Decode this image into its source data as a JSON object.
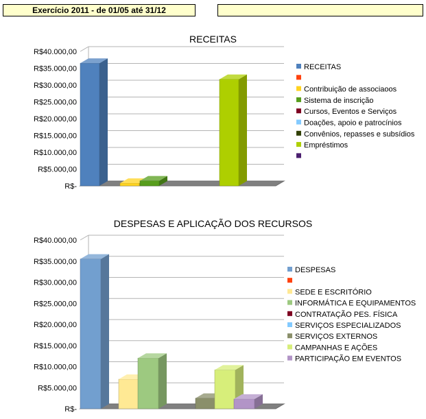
{
  "header": {
    "exercise_label": "Exercício 2011  - de 01/05 até 31/12",
    "right_box_text": ""
  },
  "chart_data": [
    {
      "type": "bar",
      "title": "RECEITAS",
      "y_tick_labels": [
        "R$40.000,00",
        "R$35.000,00",
        "R$30.000,00",
        "R$25.000,00",
        "R$20.000,00",
        "R$15.000,00",
        "R$10.000,00",
        "R$5.000,00",
        "R$-"
      ],
      "ylim": [
        0,
        40000
      ],
      "grid": true,
      "legend_position": "right",
      "series": [
        {
          "name": "RECEITAS",
          "value": 36500,
          "color": "#4f81bd"
        },
        {
          "name": "",
          "value": 0,
          "color": "#ff420e"
        },
        {
          "name": "Contribuição de associaoos",
          "value": 800,
          "color": "#ffd320"
        },
        {
          "name": "Sistema de inscrição",
          "value": 1500,
          "color": "#579d1c"
        },
        {
          "name": "Cursos, Eventos e Serviços",
          "value": 0,
          "color": "#7e0021"
        },
        {
          "name": "Doações, apoio e patrocínios",
          "value": 0,
          "color": "#83caff"
        },
        {
          "name": "Convênios, repasses e subsídios",
          "value": 0,
          "color": "#314004"
        },
        {
          "name": "Empréstimos",
          "value": 31700,
          "color": "#aecf00"
        },
        {
          "name": "",
          "value": 0,
          "color": "#4b1f6f"
        }
      ]
    },
    {
      "type": "bar",
      "title": "DESPESAS E APLICAÇÃO DOS RECURSOS",
      "y_tick_labels": [
        "R$40.000,00",
        "R$35.000,00",
        "R$30.000,00",
        "R$25.000,00",
        "R$20.000,00",
        "R$15.000,00",
        "R$10.000,00",
        "R$5.000,00",
        "R$-"
      ],
      "ylim": [
        0,
        40000
      ],
      "grid": true,
      "legend_position": "right",
      "series": [
        {
          "name": "DESPESAS",
          "value": 35500,
          "color": "#729fcf"
        },
        {
          "name": "",
          "value": 0,
          "color": "#ff420e"
        },
        {
          "name": "SEDE E ESCRITÓRIO",
          "value": 7000,
          "color": "#ffe994"
        },
        {
          "name": "INFORMÁTICA E EQUIPAMENTOS",
          "value": 12000,
          "color": "#9dc980"
        },
        {
          "name": "CONTRATAÇÃO PES. FÍSICA",
          "value": 0,
          "color": "#7e0021"
        },
        {
          "name": "SERVIÇOS ESPECIALIZADOS",
          "value": 0,
          "color": "#83caff"
        },
        {
          "name": "SERVIÇOS EXTERNOS",
          "value": 2500,
          "color": "#8a8f6a"
        },
        {
          "name": "CAMPANHAS E AÇÕES",
          "value": 9200,
          "color": "#d7ee7a"
        },
        {
          "name": "PARTICIPAÇÃO EM EVENTOS",
          "value": 2300,
          "color": "#b294c7"
        }
      ]
    }
  ]
}
